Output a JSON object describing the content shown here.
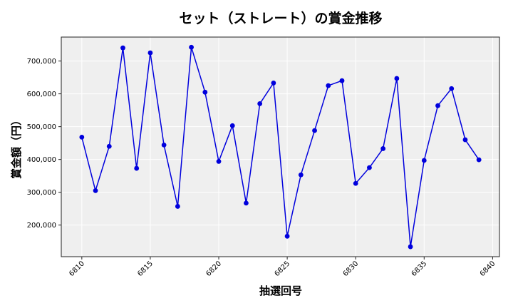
{
  "chart_data": {
    "type": "line",
    "title": "セット（ストレート）の賞金推移",
    "xlabel": "抽選回号",
    "ylabel": "賞金額（円）",
    "x": [
      6810,
      6811,
      6812,
      6813,
      6814,
      6815,
      6816,
      6817,
      6818,
      6819,
      6820,
      6821,
      6822,
      6823,
      6824,
      6825,
      6826,
      6827,
      6828,
      6829,
      6830,
      6831,
      6832,
      6833,
      6834,
      6835,
      6836,
      6837,
      6838,
      6839
    ],
    "series": [
      {
        "name": "賞金額",
        "values": [
          468000,
          305000,
          440000,
          740000,
          373000,
          725000,
          444000,
          257000,
          742000,
          605000,
          394000,
          503000,
          267000,
          570000,
          633000,
          166000,
          353000,
          488000,
          625000,
          640000,
          327000,
          375000,
          433000,
          647000,
          134000,
          397000,
          564000,
          616000,
          460000,
          399000
        ],
        "color": "#0000dd",
        "marker": "circle"
      }
    ],
    "xticks": [
      6810,
      6815,
      6820,
      6825,
      6830,
      6835,
      6840
    ],
    "xtick_labels": [
      "6810",
      "6815",
      "6820",
      "6825",
      "6830",
      "6835",
      "6840"
    ],
    "yticks": [
      200000,
      300000,
      400000,
      500000,
      600000,
      700000
    ],
    "ytick_labels": [
      "200,000",
      "300,000",
      "400,000",
      "500,000",
      "600,000",
      "700,000"
    ],
    "xlim": [
      6808.5,
      6840.5
    ],
    "ylim": [
      103700,
      773000
    ],
    "grid": true,
    "legend": null,
    "background": "#efefef",
    "grid_color": "#ffffff"
  }
}
